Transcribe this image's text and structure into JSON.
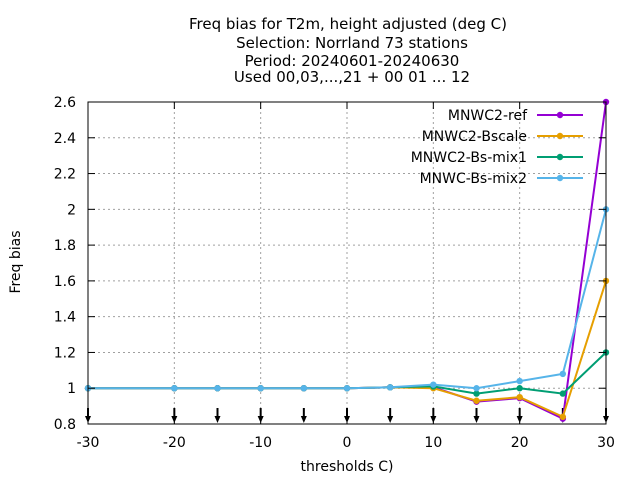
{
  "chart_data": {
    "type": "line",
    "title_lines": [
      "Freq bias  for T2m, height adjusted (deg C)",
      "Selection: Norrland     73 stations",
      "Period: 20240601-20240630",
      "Used 00,03,...,21 + 00 01 ... 12"
    ],
    "xlabel": "thresholds C)",
    "ylabel": "Freq bias",
    "xlim": [
      -30,
      30
    ],
    "ylim": [
      0.8,
      2.6
    ],
    "xticks": [
      -30,
      -20,
      -10,
      0,
      10,
      20,
      30
    ],
    "xtick_labels": [
      "-30",
      "-20",
      "-10",
      "0",
      "10",
      "20",
      "30"
    ],
    "yticks": [
      0.8,
      1.0,
      1.2,
      1.4,
      1.6,
      1.8,
      2.0,
      2.2,
      2.4,
      2.6
    ],
    "ytick_labels": [
      "0.8",
      "1",
      "1.2",
      "1.4",
      "1.6",
      "1.8",
      "2",
      "2.2",
      "2.4",
      "2.6"
    ],
    "grid": true,
    "legend_position": "top-right",
    "threshold_markers": [
      -30,
      -20,
      -15,
      -10,
      -5,
      0,
      5,
      10,
      15,
      20,
      25,
      30
    ],
    "x": [
      -30,
      -20,
      -15,
      -10,
      -5,
      0,
      5,
      10,
      15,
      20,
      25,
      30
    ],
    "series": [
      {
        "name": "MNWC2-ref",
        "color": "#9400d3",
        "values": [
          1.0,
          1.0,
          1.0,
          1.0,
          1.0,
          1.0,
          1.005,
          1.005,
          0.925,
          0.945,
          0.83,
          2.6
        ]
      },
      {
        "name": "MNWC2-Bscale",
        "color": "#e69f00",
        "values": [
          1.0,
          1.0,
          1.0,
          1.0,
          1.0,
          1.0,
          1.005,
          1.0,
          0.93,
          0.95,
          0.84,
          1.6
        ]
      },
      {
        "name": "MNWC2-Bs-mix1",
        "color": "#009e73",
        "values": [
          1.0,
          1.0,
          1.0,
          1.0,
          1.0,
          1.0,
          1.005,
          1.01,
          0.97,
          1.0,
          0.97,
          1.2
        ]
      },
      {
        "name": "MNWC-Bs-mix2",
        "color": "#56b4e9",
        "values": [
          1.0,
          1.0,
          1.0,
          1.0,
          1.0,
          1.0,
          1.005,
          1.02,
          1.0,
          1.04,
          1.08,
          2.0
        ]
      }
    ]
  }
}
